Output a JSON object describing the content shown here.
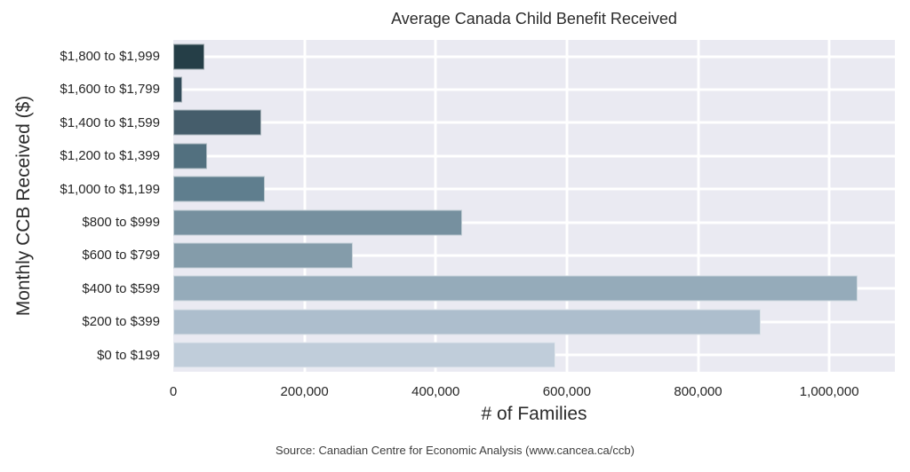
{
  "source": "Source: Canadian Centre for Economic Analysis (www.cancea.ca/ccb)",
  "chart_data": {
    "type": "bar",
    "orientation": "horizontal",
    "title": "Average Canada Child Benefit Received",
    "xlabel": "# of Families",
    "ylabel": "Monthly CCB Received ($)",
    "categories": [
      "$1,800 to $1,999",
      "$1,600 to $1,799",
      "$1,400 to $1,599",
      "$1,200 to $1,399",
      "$1,000 to $1,199",
      "$800 to $999",
      "$600 to $799",
      "$400 to $599",
      "$200 to $399",
      "$0 to $199"
    ],
    "values": [
      47000,
      13000,
      134000,
      51000,
      139000,
      440000,
      273000,
      1043000,
      895000,
      583000
    ],
    "xlim": [
      0,
      1100000
    ],
    "xticks": [
      0,
      200000,
      400000,
      600000,
      800000,
      1000000
    ],
    "xtick_labels": [
      "0",
      "200,000",
      "400,000",
      "600,000",
      "800,000",
      "1,000,000"
    ],
    "bar_colors": [
      "#253e47",
      "#324b59",
      "#455d6b",
      "#52707f",
      "#5f7e8e",
      "#76909f",
      "#849caa",
      "#95abba",
      "#adbecd",
      "#c0cdda"
    ],
    "grid": true,
    "legend": null,
    "plot_bg": "#eaeaf2",
    "grid_color": "#ffffff"
  }
}
